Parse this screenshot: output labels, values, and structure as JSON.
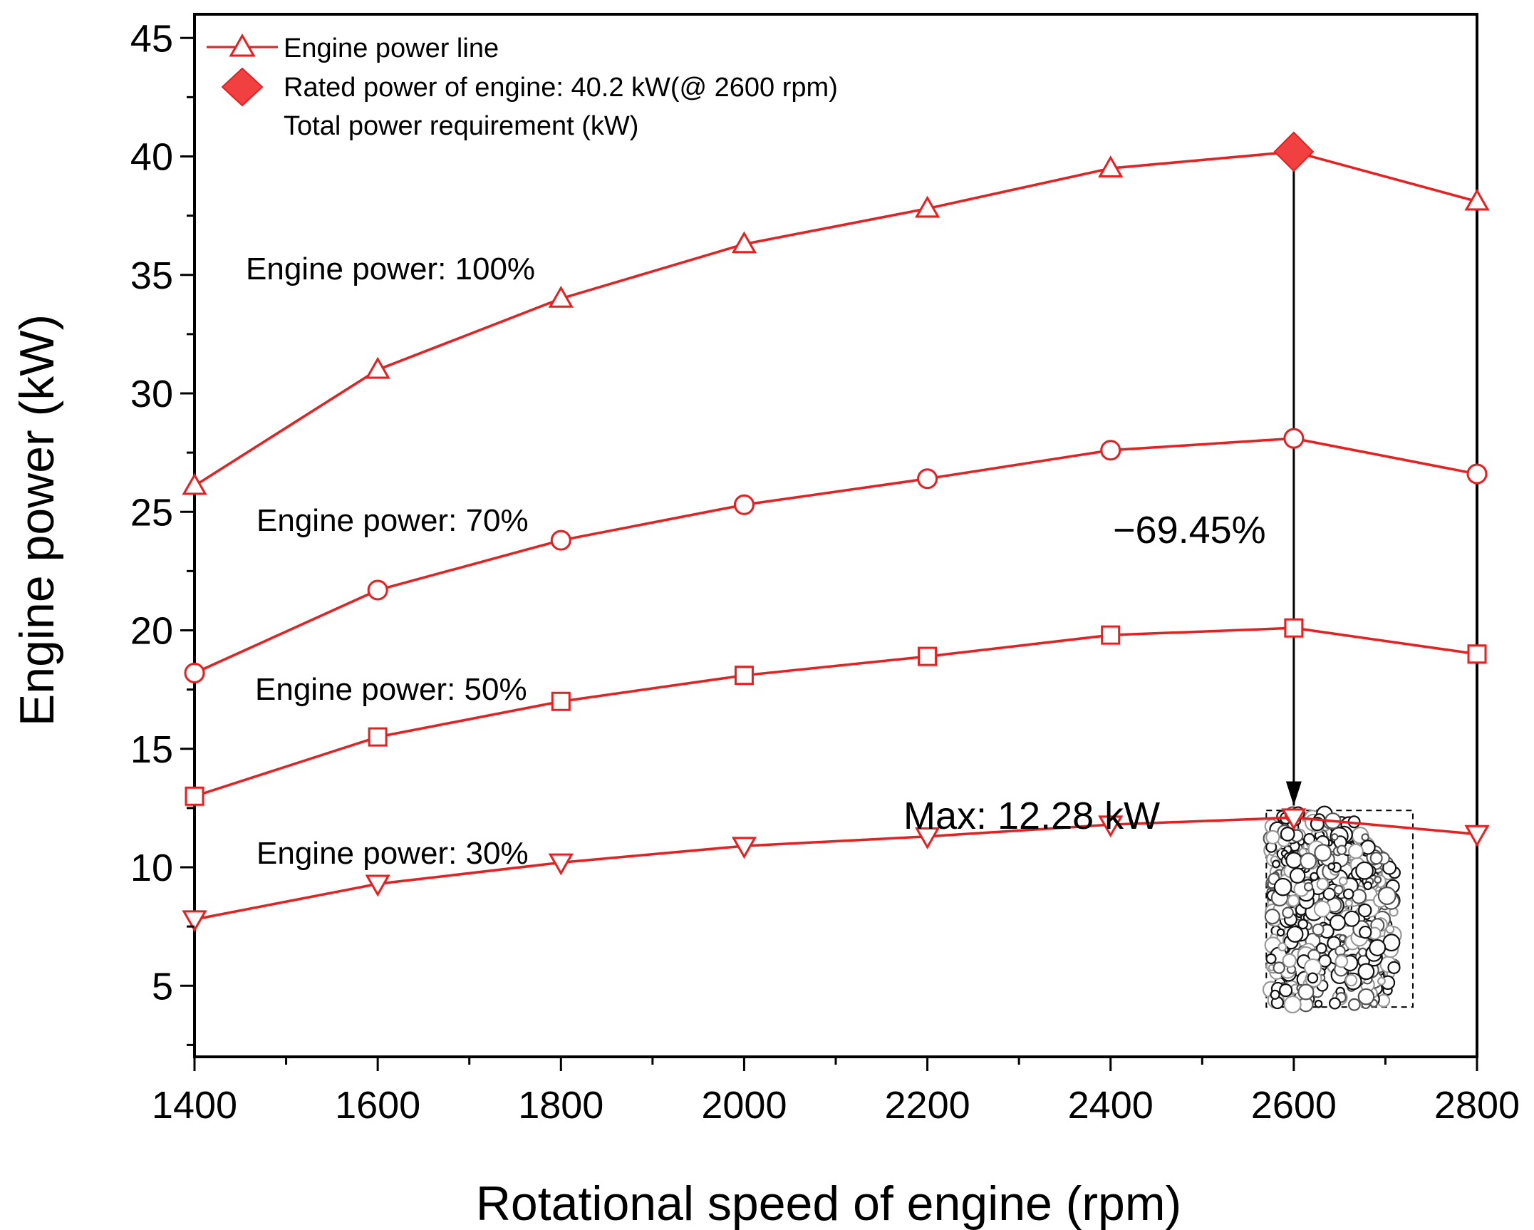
{
  "chart_data": {
    "type": "line",
    "title": "",
    "xlabel": "Rotational speed of engine (rpm)",
    "ylabel": "Engine power (kW)",
    "xlim": [
      1400,
      2800
    ],
    "ylim": [
      2,
      46
    ],
    "xticks": [
      1400,
      1600,
      1800,
      2000,
      2200,
      2400,
      2600,
      2800
    ],
    "yticks": [
      5,
      10,
      15,
      20,
      25,
      30,
      35,
      40,
      45
    ],
    "x": [
      1400,
      1600,
      1800,
      2000,
      2200,
      2400,
      2600,
      2800
    ],
    "series": [
      {
        "name": "Engine power: 100%",
        "marker": "triangle-up",
        "values": [
          26.1,
          31.0,
          34.0,
          36.3,
          37.8,
          39.5,
          40.2,
          38.1
        ]
      },
      {
        "name": "Engine power: 70%",
        "marker": "circle",
        "values": [
          18.2,
          21.7,
          23.8,
          25.3,
          26.4,
          27.6,
          28.1,
          26.6
        ]
      },
      {
        "name": "Engine power: 50%",
        "marker": "square",
        "values": [
          13.0,
          15.5,
          17.0,
          18.1,
          18.9,
          19.8,
          20.1,
          19.0
        ]
      },
      {
        "name": "Engine power: 30%",
        "marker": "triangle-down",
        "values": [
          7.8,
          9.3,
          10.2,
          10.9,
          11.3,
          11.8,
          12.1,
          11.4
        ]
      }
    ],
    "rated_point": {
      "x": 2600,
      "y": 40.2
    },
    "legend": {
      "position": "top-left",
      "entries": [
        "Engine power line",
        "Rated power of engine: 40.2 kW(@ 2600 rpm)",
        "Total power requirement (kW)"
      ]
    },
    "annotations": {
      "reduction": "−69.45%",
      "max": "Max: 12.28 kW"
    },
    "requirement_cloud": {
      "x_range": [
        2570,
        2730
      ],
      "y_range": [
        4.1,
        12.4
      ]
    },
    "colors": {
      "series": "#ee1c1c",
      "marker_fill": "#ffffff",
      "rated_fill": "#f04040",
      "axis": "#000000"
    }
  }
}
